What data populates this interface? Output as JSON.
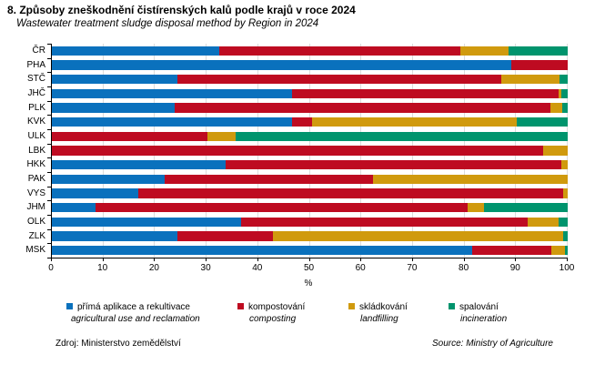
{
  "title": "8. Způsoby zneškodnění čistírenských kalů podle krajů v roce 2024",
  "subtitle": "Wastewater treatment sludge disposal method by Region in 2024",
  "footer": {
    "source_cz": "Zdroj: Ministerstvo zemědělství",
    "source_en": "Source: Ministry of Agriculture"
  },
  "colors": {
    "axis": "#000000",
    "grid": "#dcdcdc",
    "blue": "#0a71bd",
    "red": "#be0b21",
    "yellow": "#d09a0e",
    "green": "#00946d"
  },
  "chart_data": {
    "type": "bar",
    "orientation": "horizontal",
    "stacked": true,
    "title": "8. Způsoby zneškodnění čistírenských kalů podle krajů v roce 2024",
    "subtitle": "Wastewater treatment sludge disposal method by Region in 2024",
    "xlabel": "%",
    "xlim": [
      0,
      100
    ],
    "xticks": [
      0,
      10,
      20,
      30,
      40,
      50,
      60,
      70,
      80,
      90,
      100
    ],
    "grid": true,
    "legend_position": "bottom",
    "categories": [
      "ČR",
      "PHA",
      "STČ",
      "JHČ",
      "PLK",
      "KVK",
      "ULK",
      "LBK",
      "HKK",
      "PAK",
      "VYS",
      "JHM",
      "OLK",
      "ZLK",
      "MSK"
    ],
    "series": [
      {
        "key": "agricultural-use-and-reclamation",
        "name": "přímá aplikace a rekultivace",
        "name_en": "agricultural use and reclamation",
        "color": "#0a71bd",
        "values": [
          32.5,
          89.0,
          24.3,
          46.5,
          23.8,
          46.5,
          0,
          0,
          33.7,
          21.8,
          16.8,
          8.5,
          36.7,
          24.4,
          81.4
        ]
      },
      {
        "key": "composting",
        "name": "kompostování",
        "name_en": "composting",
        "color": "#be0b21",
        "values": [
          46.7,
          11.0,
          62.9,
          51.7,
          72.8,
          3.9,
          30.1,
          95.3,
          65.1,
          40.5,
          82.4,
          72.1,
          55.5,
          18.5,
          15.5
        ]
      },
      {
        "key": "landfilling",
        "name": "skládkování",
        "name_en": "landfilling",
        "color": "#d09a0e",
        "values": [
          9.3,
          0,
          11.3,
          0.6,
          2.4,
          39.8,
          5.5,
          4.7,
          1.2,
          37.7,
          0.8,
          3.2,
          6.0,
          56.2,
          2.6
        ]
      },
      {
        "key": "incineration",
        "name": "spalování",
        "name_en": "incineration",
        "color": "#00946d",
        "values": [
          11.5,
          0,
          1.5,
          1.2,
          1.0,
          9.8,
          64.4,
          0,
          0,
          0,
          0,
          16.2,
          1.8,
          0.9,
          0.5
        ]
      }
    ]
  }
}
